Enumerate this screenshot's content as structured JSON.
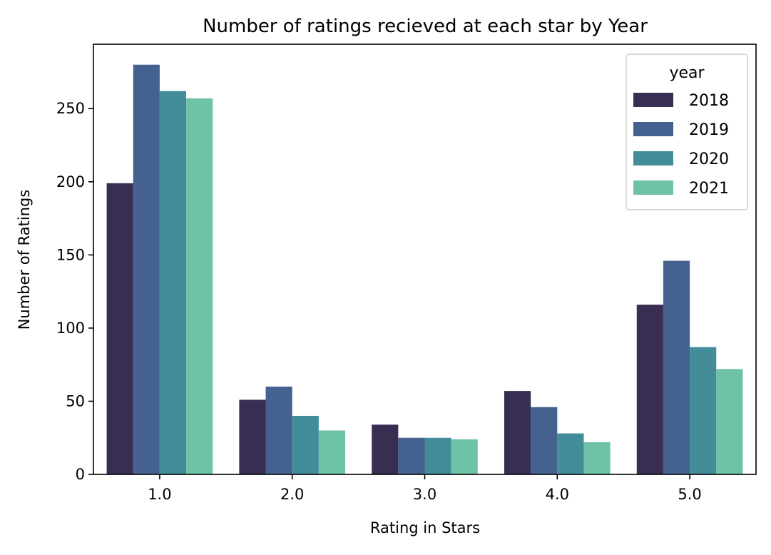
{
  "chart_data": {
    "type": "bar",
    "title": "Number of ratings recieved at each star by Year",
    "xlabel": "Rating in Stars",
    "ylabel": "Number of Ratings",
    "categories": [
      "1.0",
      "2.0",
      "3.0",
      "4.0",
      "5.0"
    ],
    "series": [
      {
        "name": "2018",
        "color": "#382e51",
        "values": [
          199,
          51,
          34,
          57,
          116
        ]
      },
      {
        "name": "2019",
        "color": "#446190",
        "values": [
          280,
          60,
          25,
          46,
          146
        ]
      },
      {
        "name": "2020",
        "color": "#428d99",
        "values": [
          262,
          40,
          25,
          28,
          87
        ]
      },
      {
        "name": "2021",
        "color": "#6ec2a6",
        "values": [
          257,
          30,
          24,
          22,
          72
        ]
      }
    ],
    "ylim": [
      0,
      294
    ],
    "yticks": [
      0,
      50,
      100,
      150,
      200,
      250
    ],
    "grid": false,
    "legend": {
      "title": "year",
      "placement": "top-right"
    }
  }
}
